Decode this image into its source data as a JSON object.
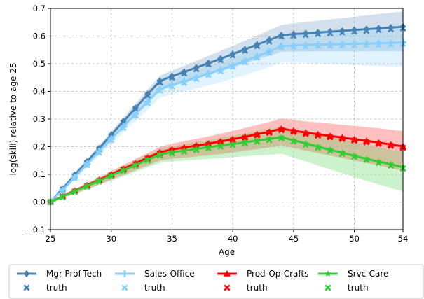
{
  "chart_data": {
    "type": "line",
    "xlabel": "Age",
    "ylabel": "log(skill) relative to age 25",
    "xlim": [
      25,
      54
    ],
    "ylim": [
      -0.1,
      0.7
    ],
    "x_ticks": [
      "25",
      "30",
      "35",
      "40",
      "45",
      "50",
      "54"
    ],
    "y_ticks": [
      "−0.1",
      "0.0",
      "0.1",
      "0.2",
      "0.3",
      "0.4",
      "0.5",
      "0.6",
      "0.7"
    ],
    "grid": true,
    "legend_position": "below",
    "x": [
      25,
      26,
      27,
      28,
      29,
      30,
      31,
      32,
      33,
      34,
      35,
      36,
      37,
      38,
      39,
      40,
      41,
      42,
      43,
      44,
      45,
      46,
      47,
      48,
      49,
      50,
      51,
      52,
      53,
      54
    ],
    "series": [
      {
        "name": "Mgr-Prof-Tech",
        "truth_label": "truth",
        "color": "#4682b4",
        "marker": "diamond",
        "values": [
          0.0,
          0.048,
          0.098,
          0.146,
          0.194,
          0.243,
          0.292,
          0.34,
          0.39,
          0.437,
          0.455,
          0.47,
          0.486,
          0.502,
          0.518,
          0.535,
          0.552,
          0.569,
          0.586,
          0.603,
          0.607,
          0.61,
          0.613,
          0.616,
          0.619,
          0.622,
          0.625,
          0.628,
          0.631,
          0.634
        ],
        "truth": [
          0.0,
          0.045,
          0.094,
          0.142,
          0.19,
          0.238,
          0.287,
          0.336,
          0.385,
          0.432,
          0.45,
          0.465,
          0.48,
          0.497,
          0.513,
          0.53,
          0.547,
          0.564,
          0.58,
          0.598,
          0.601,
          0.604,
          0.607,
          0.61,
          0.613,
          0.616,
          0.619,
          0.622,
          0.625,
          0.628
        ]
      },
      {
        "name": "Sales-Office",
        "truth_label": "truth",
        "color": "#87cefa",
        "marker": "plus",
        "values": [
          0.0,
          0.043,
          0.09,
          0.137,
          0.183,
          0.228,
          0.273,
          0.318,
          0.362,
          0.408,
          0.423,
          0.436,
          0.45,
          0.464,
          0.478,
          0.494,
          0.51,
          0.527,
          0.545,
          0.564,
          0.566,
          0.568,
          0.569,
          0.57,
          0.571,
          0.572,
          0.573,
          0.574,
          0.575,
          0.577
        ],
        "truth": [
          0.0,
          0.04,
          0.086,
          0.133,
          0.178,
          0.224,
          0.268,
          0.313,
          0.357,
          0.403,
          0.418,
          0.431,
          0.445,
          0.459,
          0.473,
          0.489,
          0.505,
          0.522,
          0.54,
          0.559,
          0.561,
          0.563,
          0.564,
          0.565,
          0.566,
          0.567,
          0.568,
          0.569,
          0.57,
          0.572
        ]
      },
      {
        "name": "Prod-Op-Crafts",
        "truth_label": "truth",
        "color": "#ff0000",
        "marker": "triangle",
        "values": [
          0.0,
          0.021,
          0.041,
          0.06,
          0.08,
          0.1,
          0.12,
          0.14,
          0.16,
          0.18,
          0.19,
          0.197,
          0.204,
          0.211,
          0.219,
          0.227,
          0.236,
          0.245,
          0.254,
          0.265,
          0.258,
          0.251,
          0.245,
          0.239,
          0.233,
          0.227,
          0.221,
          0.215,
          0.208,
          0.201
        ],
        "truth": [
          0.0,
          0.019,
          0.038,
          0.057,
          0.077,
          0.097,
          0.117,
          0.137,
          0.157,
          0.176,
          0.186,
          0.193,
          0.2,
          0.207,
          0.215,
          0.223,
          0.232,
          0.241,
          0.25,
          0.26,
          0.253,
          0.246,
          0.24,
          0.234,
          0.228,
          0.222,
          0.216,
          0.21,
          0.203,
          0.196
        ]
      },
      {
        "name": "Srvc-Care",
        "truth_label": "truth",
        "color": "#32cd32",
        "marker": "star",
        "values": [
          0.0,
          0.02,
          0.039,
          0.058,
          0.077,
          0.096,
          0.115,
          0.134,
          0.153,
          0.172,
          0.18,
          0.186,
          0.192,
          0.198,
          0.204,
          0.21,
          0.216,
          0.222,
          0.228,
          0.234,
          0.223,
          0.212,
          0.2,
          0.189,
          0.178,
          0.167,
          0.156,
          0.146,
          0.136,
          0.126
        ],
        "truth": [
          0.0,
          0.017,
          0.036,
          0.055,
          0.074,
          0.093,
          0.112,
          0.131,
          0.15,
          0.168,
          0.176,
          0.182,
          0.188,
          0.194,
          0.2,
          0.206,
          0.212,
          0.218,
          0.224,
          0.23,
          0.219,
          0.207,
          0.196,
          0.185,
          0.174,
          0.163,
          0.152,
          0.141,
          0.131,
          0.121
        ]
      }
    ]
  }
}
